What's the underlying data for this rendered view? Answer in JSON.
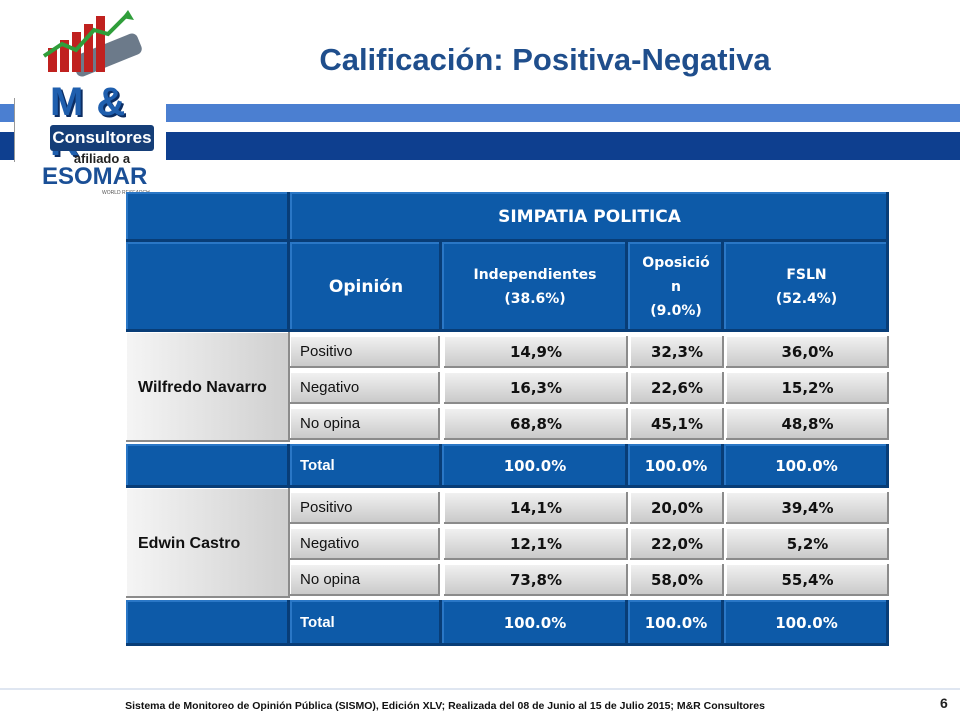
{
  "logo": {
    "brand": "M & R",
    "name": "Consultores",
    "affiliation": "afiliado a",
    "partner": "ESOMAR",
    "partner_sub": "WORLD RESEARCH"
  },
  "title": "Calificación: Positiva-Negativa",
  "table": {
    "group_header": "SIMPATIA POLITICA",
    "opinion_header": "Opinión",
    "columns": [
      {
        "name": "Independientes",
        "pct": "(38.6%)"
      },
      {
        "name_line1": "Oposició",
        "name_line2": "n",
        "pct": "(9.0%)"
      },
      {
        "name": "FSLN",
        "pct": "(52.4%)"
      }
    ],
    "blocks": [
      {
        "person": "Wilfredo Navarro",
        "rows": [
          {
            "label": "Positivo",
            "values": [
              "14,9%",
              "32,3%",
              "36,0%"
            ]
          },
          {
            "label": "Negativo",
            "values": [
              "16,3%",
              "22,6%",
              "15,2%"
            ]
          },
          {
            "label": "No opina",
            "values": [
              "68,8%",
              "45,1%",
              "48,8%"
            ]
          }
        ],
        "total": {
          "label": "Total",
          "values": [
            "100.0%",
            "100.0%",
            "100.0%"
          ]
        }
      },
      {
        "person": "Edwin Castro",
        "rows": [
          {
            "label": "Positivo",
            "values": [
              "14,1%",
              "20,0%",
              "39,4%"
            ]
          },
          {
            "label": "Negativo",
            "values": [
              "12,1%",
              "22,0%",
              "5,2%"
            ]
          },
          {
            "label": "No opina",
            "values": [
              "73,8%",
              "58,0%",
              "55,4%"
            ]
          }
        ],
        "total": {
          "label": "Total",
          "values": [
            "100.0%",
            "100.0%",
            "100.0%"
          ]
        }
      }
    ]
  },
  "footer": {
    "source": "Sistema de Monitoreo de Opinión Pública (SISMO), Edición XLV; Realizada del 08 de Junio al 15 de Julio 2015; M&R Consultores",
    "page": "6"
  }
}
